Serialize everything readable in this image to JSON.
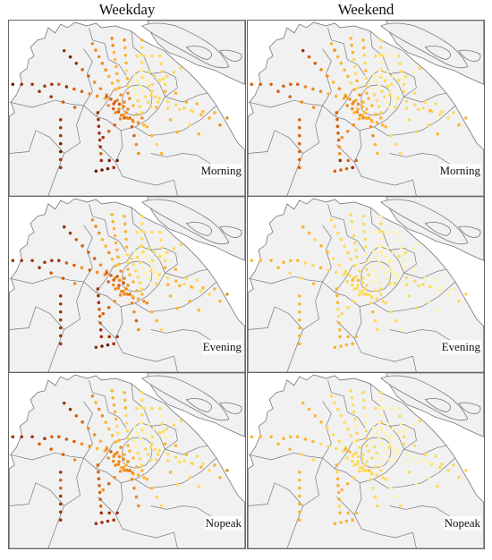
{
  "columns": [
    "Weekday",
    "Weekend"
  ],
  "rows": [
    "Morning",
    "Evening",
    "Nopeak"
  ],
  "colors": {
    "land": "#f1f1f1",
    "water": "#ffffff",
    "boundary": "#777777",
    "ramp": [
      "#fff3a0",
      "#fddb5c",
      "#fdb431",
      "#f18b1e",
      "#d4600f",
      "#9c3209",
      "#6e1d05"
    ]
  },
  "intensity": {
    "Weekday-Morning": 1.0,
    "Weekday-Evening": 0.95,
    "Weekday-Nopeak": 0.85,
    "Weekend-Morning": 0.75,
    "Weekend-Evening": 0.35,
    "Weekend-Nopeak": 0.35
  }
}
